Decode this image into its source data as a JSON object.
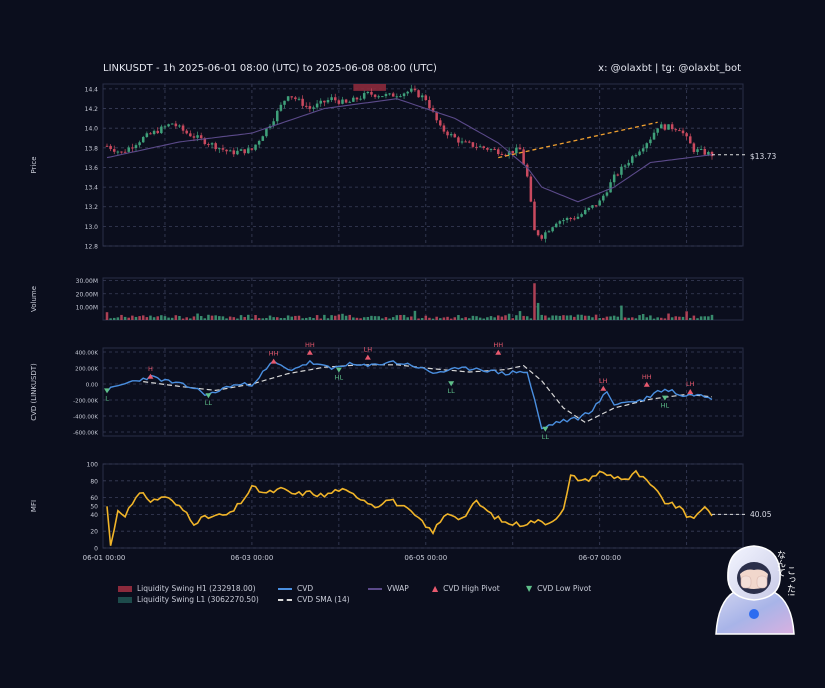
{
  "header": {
    "title": "LINKUSDT - 1h 2025-06-01 08:00 (UTC) to 2025-06-08 08:00 (UTC)",
    "handle": "x: @olaxbt | tg: @olaxbt_bot"
  },
  "legend": {
    "swing_h1": "Liquidity Swing H1 (232918.00)",
    "swing_l1": "Liquidity Swing L1 (3062270.50)",
    "cvd": "CVD",
    "cvd_sma": "CVD SMA (14)",
    "vwap": "VWAP",
    "cvd_high_pivot": "CVD High Pivot",
    "cvd_low_pivot": "CVD Low Pivot"
  },
  "mascot": {
    "caption": "なんてこった!"
  },
  "colors": {
    "background": "#0b0e1d",
    "up": "#3fa07a",
    "down": "#c9495e",
    "cvd": "#4a8fe0",
    "sma": "#d8d8d8",
    "vwap": "#5b4a8a",
    "mfi": "#f0b429",
    "trend": "#f0a030",
    "swing_h1": "#8c2a3c",
    "swing_l1": "#1d4b4b"
  },
  "chart_data": [
    {
      "type": "candlestick",
      "name": "Price",
      "ylabel": "Price",
      "ylim": [
        12.8,
        14.45
      ],
      "yticks": [
        "12.8",
        "13.0",
        "13.2",
        "13.4",
        "13.6",
        "13.8",
        "14.0",
        "14.2",
        "14.4"
      ],
      "last_price_label": "$13.73",
      "x_count": 168,
      "close_anchors": [
        [
          0,
          13.82
        ],
        [
          4,
          13.75
        ],
        [
          10,
          13.9
        ],
        [
          18,
          14.05
        ],
        [
          22,
          13.95
        ],
        [
          28,
          13.85
        ],
        [
          34,
          13.75
        ],
        [
          40,
          13.78
        ],
        [
          46,
          14.1
        ],
        [
          50,
          14.35
        ],
        [
          56,
          14.2
        ],
        [
          62,
          14.3
        ],
        [
          66,
          14.25
        ],
        [
          72,
          14.35
        ],
        [
          78,
          14.33
        ],
        [
          84,
          14.38
        ],
        [
          88,
          14.3
        ],
        [
          92,
          14.0
        ],
        [
          98,
          13.85
        ],
        [
          104,
          13.8
        ],
        [
          110,
          13.75
        ],
        [
          114,
          13.78
        ],
        [
          116,
          13.5
        ],
        [
          118,
          12.95
        ],
        [
          120,
          12.9
        ],
        [
          124,
          13.05
        ],
        [
          130,
          13.1
        ],
        [
          136,
          13.25
        ],
        [
          140,
          13.5
        ],
        [
          146,
          13.75
        ],
        [
          150,
          13.9
        ],
        [
          152,
          14.02
        ],
        [
          158,
          14.0
        ],
        [
          162,
          13.78
        ],
        [
          167,
          13.73
        ]
      ],
      "vwap_anchors": [
        [
          0,
          13.7
        ],
        [
          20,
          13.86
        ],
        [
          40,
          13.95
        ],
        [
          60,
          14.2
        ],
        [
          80,
          14.3
        ],
        [
          96,
          14.1
        ],
        [
          108,
          13.85
        ],
        [
          116,
          13.6
        ],
        [
          120,
          13.4
        ],
        [
          130,
          13.25
        ],
        [
          140,
          13.4
        ],
        [
          150,
          13.65
        ],
        [
          167,
          13.73
        ]
      ],
      "trend_line": {
        "x": [
          108,
          152
        ],
        "y": [
          13.7,
          14.06
        ]
      },
      "liquidity_swing_h1": {
        "x": [
          68,
          77
        ],
        "y": [
          14.38,
          14.45
        ]
      }
    },
    {
      "type": "bar",
      "name": "Volume",
      "ylabel": "Volume",
      "ylim": [
        0,
        32000000
      ],
      "yticks": [
        "10.00M",
        "20.00M",
        "30.00M"
      ],
      "spike_index": 118,
      "spike_value": 28000000
    },
    {
      "type": "line",
      "name": "CVD",
      "ylabel": "CVD (LINKUSDT)",
      "ylim": [
        -650000,
        450000
      ],
      "yticks": [
        "400.00K",
        "200.00K",
        "0.00",
        "-200.00K",
        "-400.00K",
        "-600.00K"
      ],
      "series": [
        {
          "name": "CVD",
          "anchors": [
            [
              0,
              -80000
            ],
            [
              6,
              20000
            ],
            [
              12,
              90000
            ],
            [
              18,
              20000
            ],
            [
              24,
              -50000
            ],
            [
              28,
              -140000
            ],
            [
              34,
              -20000
            ],
            [
              40,
              0
            ],
            [
              46,
              280000
            ],
            [
              50,
              170000
            ],
            [
              56,
              270000
            ],
            [
              62,
              190000
            ],
            [
              66,
              250000
            ],
            [
              72,
              220000
            ],
            [
              78,
              280000
            ],
            [
              84,
              240000
            ],
            [
              90,
              140000
            ],
            [
              96,
              180000
            ],
            [
              102,
              200000
            ],
            [
              106,
              160000
            ],
            [
              110,
              130000
            ],
            [
              114,
              160000
            ],
            [
              116,
              140000
            ],
            [
              118,
              -200000
            ],
            [
              120,
              -560000
            ],
            [
              124,
              -480000
            ],
            [
              130,
              -430000
            ],
            [
              134,
              -320000
            ],
            [
              138,
              -100000
            ],
            [
              140,
              -250000
            ],
            [
              148,
              -200000
            ],
            [
              152,
              -90000
            ],
            [
              156,
              -70000
            ],
            [
              158,
              -150000
            ],
            [
              162,
              -130000
            ],
            [
              167,
              -170000
            ]
          ]
        },
        {
          "name": "CVD SMA (14)",
          "anchors": [
            [
              10,
              30000
            ],
            [
              20,
              -30000
            ],
            [
              30,
              -80000
            ],
            [
              40,
              0
            ],
            [
              50,
              130000
            ],
            [
              60,
              210000
            ],
            [
              70,
              240000
            ],
            [
              80,
              240000
            ],
            [
              90,
              190000
            ],
            [
              100,
              150000
            ],
            [
              110,
              180000
            ],
            [
              115,
              230000
            ],
            [
              120,
              40000
            ],
            [
              126,
              -300000
            ],
            [
              132,
              -480000
            ],
            [
              140,
              -300000
            ],
            [
              150,
              -190000
            ],
            [
              160,
              -130000
            ],
            [
              167,
              -160000
            ]
          ]
        }
      ],
      "pivots": [
        {
          "label": "H",
          "type": "high",
          "x": 12,
          "y": 90000
        },
        {
          "label": "L",
          "type": "low",
          "x": 0,
          "y": -80000
        },
        {
          "label": "LL",
          "type": "low",
          "x": 28,
          "y": -140000
        },
        {
          "label": "HH",
          "type": "high",
          "x": 46,
          "y": 280000
        },
        {
          "label": "HH",
          "type": "high",
          "x": 56,
          "y": 390000
        },
        {
          "label": "HL",
          "type": "low",
          "x": 64,
          "y": 180000
        },
        {
          "label": "LH",
          "type": "high",
          "x": 72,
          "y": 330000
        },
        {
          "label": "LL",
          "type": "low",
          "x": 95,
          "y": 10000
        },
        {
          "label": "HH",
          "type": "high",
          "x": 108,
          "y": 390000
        },
        {
          "label": "LL",
          "type": "low",
          "x": 121,
          "y": -560000
        },
        {
          "label": "LH",
          "type": "high",
          "x": 137,
          "y": -60000
        },
        {
          "label": "HH",
          "type": "high",
          "x": 149,
          "y": -10000
        },
        {
          "label": "HL",
          "type": "low",
          "x": 154,
          "y": -170000
        },
        {
          "label": "LH",
          "type": "high",
          "x": 161,
          "y": -100000
        }
      ]
    },
    {
      "type": "line",
      "name": "MFI",
      "ylabel": "MFI",
      "ylim": [
        0,
        100
      ],
      "yticks": [
        "0",
        "20",
        "40",
        "50",
        "60",
        "80",
        "100"
      ],
      "last_value_label": "40.05",
      "anchors": [
        [
          0,
          50
        ],
        [
          1,
          2
        ],
        [
          3,
          45
        ],
        [
          5,
          40
        ],
        [
          8,
          58
        ],
        [
          10,
          67
        ],
        [
          12,
          55
        ],
        [
          16,
          62
        ],
        [
          18,
          55
        ],
        [
          22,
          42
        ],
        [
          24,
          30
        ],
        [
          26,
          35
        ],
        [
          30,
          38
        ],
        [
          34,
          40
        ],
        [
          38,
          60
        ],
        [
          40,
          72
        ],
        [
          44,
          65
        ],
        [
          48,
          70
        ],
        [
          52,
          64
        ],
        [
          56,
          66
        ],
        [
          60,
          62
        ],
        [
          64,
          70
        ],
        [
          70,
          60
        ],
        [
          74,
          50
        ],
        [
          78,
          58
        ],
        [
          82,
          48
        ],
        [
          86,
          35
        ],
        [
          88,
          25
        ],
        [
          90,
          20
        ],
        [
          94,
          42
        ],
        [
          98,
          35
        ],
        [
          102,
          55
        ],
        [
          106,
          40
        ],
        [
          110,
          30
        ],
        [
          114,
          28
        ],
        [
          118,
          32
        ],
        [
          122,
          30
        ],
        [
          126,
          45
        ],
        [
          128,
          85
        ],
        [
          132,
          80
        ],
        [
          136,
          90
        ],
        [
          140,
          85
        ],
        [
          144,
          82
        ],
        [
          146,
          90
        ],
        [
          150,
          75
        ],
        [
          154,
          55
        ],
        [
          158,
          48
        ],
        [
          160,
          38
        ],
        [
          163,
          38
        ],
        [
          165,
          48
        ],
        [
          167,
          40
        ]
      ]
    }
  ],
  "x_axis": {
    "ticks": [
      "06-01 00:00",
      "06-03 00:00",
      "06-05 00:00",
      "06-07 00:00"
    ],
    "tick_index": [
      -8,
      40,
      88,
      136
    ]
  }
}
